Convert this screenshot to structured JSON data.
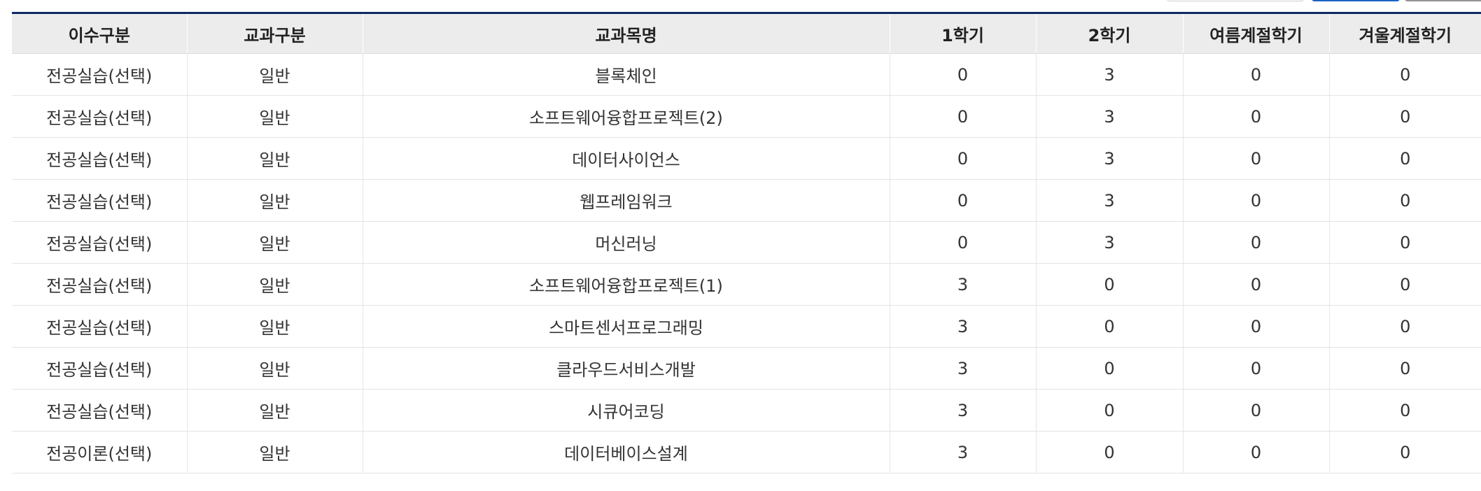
{
  "table": {
    "headers": [
      "이수구분",
      "교과구분",
      "교과목명",
      "1학기",
      "2학기",
      "여름계절학기",
      "겨울계절학기"
    ],
    "rows": [
      [
        "전공실습(선택)",
        "일반",
        "블록체인",
        "0",
        "3",
        "0",
        "0"
      ],
      [
        "전공실습(선택)",
        "일반",
        "소프트웨어융합프로젝트(2)",
        "0",
        "3",
        "0",
        "0"
      ],
      [
        "전공실습(선택)",
        "일반",
        "데이터사이언스",
        "0",
        "3",
        "0",
        "0"
      ],
      [
        "전공실습(선택)",
        "일반",
        "웹프레임워크",
        "0",
        "3",
        "0",
        "0"
      ],
      [
        "전공실습(선택)",
        "일반",
        "머신러닝",
        "0",
        "3",
        "0",
        "0"
      ],
      [
        "전공실습(선택)",
        "일반",
        "소프트웨어융합프로젝트(1)",
        "3",
        "0",
        "0",
        "0"
      ],
      [
        "전공실습(선택)",
        "일반",
        "스마트센서프로그래밍",
        "3",
        "0",
        "0",
        "0"
      ],
      [
        "전공실습(선택)",
        "일반",
        "클라우드서비스개발",
        "3",
        "0",
        "0",
        "0"
      ],
      [
        "전공실습(선택)",
        "일반",
        "시큐어코딩",
        "3",
        "0",
        "0",
        "0"
      ],
      [
        "전공이론(선택)",
        "일반",
        "데이터베이스설계",
        "3",
        "0",
        "0",
        "0"
      ]
    ]
  },
  "colors": {
    "header_bg": "#ececec",
    "table_top_border": "#0d2a66",
    "primary_button_border": "#1a62c8"
  }
}
